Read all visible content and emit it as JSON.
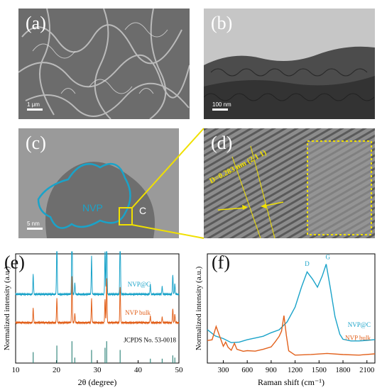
{
  "panels": {
    "a": {
      "label": "(a)",
      "scale": "1 μm"
    },
    "b": {
      "label": "(b)",
      "scale": "100 nm"
    },
    "c": {
      "label": "(c)",
      "scale": "5 nm",
      "region_nvp": "NVP",
      "region_c": "C"
    },
    "d": {
      "label": "(d)",
      "annotation": "D=0.283 nm (2 1 1)"
    }
  },
  "colors": {
    "nvpc": "#1aa3c9",
    "bulk": "#e2611c",
    "jcpds": "#3a8a80",
    "yellow": "#f0e000",
    "cyan_outline": "#1aa3c9"
  },
  "chart_data": [
    {
      "type": "line",
      "panel_label": "(e)",
      "xlabel": "2θ (degree)",
      "ylabel": "Normalized intensity (a.u.)",
      "xlim": [
        10,
        50
      ],
      "xticks": [
        10,
        20,
        30,
        40,
        50
      ],
      "series": [
        {
          "name": "NVP@C",
          "color": "#1aa3c9",
          "offset": 0.63,
          "peaks": [
            [
              14.3,
              0.18
            ],
            [
              20.1,
              0.5
            ],
            [
              23.8,
              0.78
            ],
            [
              24.5,
              0.1
            ],
            [
              28.6,
              0.35
            ],
            [
              31.9,
              0.4
            ],
            [
              32.3,
              0.72
            ],
            [
              35.6,
              0.6
            ],
            [
              43.0,
              0.09
            ],
            [
              45.9,
              0.07
            ],
            [
              48.5,
              0.18
            ],
            [
              49.0,
              0.1
            ]
          ]
        },
        {
          "name": "NVP bulk",
          "color": "#e2611c",
          "offset": 0.37,
          "peaks": [
            [
              14.3,
              0.13
            ],
            [
              20.1,
              0.22
            ],
            [
              23.8,
              0.42
            ],
            [
              24.5,
              0.08
            ],
            [
              28.6,
              0.22
            ],
            [
              31.9,
              0.22
            ],
            [
              32.3,
              0.4
            ],
            [
              35.6,
              0.33
            ],
            [
              43.0,
              0.06
            ],
            [
              45.9,
              0.05
            ],
            [
              48.5,
              0.13
            ],
            [
              49.0,
              0.08
            ]
          ]
        }
      ],
      "reference": {
        "name": "JCPDS No. 53-0018",
        "color": "#3a8a80",
        "sticks": [
          [
            14.3,
            0.1
          ],
          [
            20.1,
            0.16
          ],
          [
            23.8,
            0.2
          ],
          [
            24.5,
            0.05
          ],
          [
            28.6,
            0.12
          ],
          [
            31.9,
            0.14
          ],
          [
            32.3,
            0.2
          ],
          [
            35.6,
            0.12
          ],
          [
            43.0,
            0.04
          ],
          [
            45.9,
            0.04
          ],
          [
            48.5,
            0.07
          ],
          [
            49.0,
            0.05
          ]
        ]
      }
    },
    {
      "type": "line",
      "panel_label": "(f)",
      "xlabel": "Raman shift (cm⁻¹)",
      "ylabel": "Normalized intensity (a.u.)",
      "xlim": [
        100,
        2200
      ],
      "xticks": [
        300,
        600,
        900,
        1200,
        1500,
        1800,
        2100
      ],
      "annotations": [
        "D",
        "G"
      ],
      "series": [
        {
          "name": "NVP@C",
          "color": "#1aa3c9",
          "points": [
            [
              100,
              0.3
            ],
            [
              200,
              0.24
            ],
            [
              300,
              0.22
            ],
            [
              400,
              0.19
            ],
            [
              500,
              0.2
            ],
            [
              600,
              0.22
            ],
            [
              700,
              0.23
            ],
            [
              800,
              0.24
            ],
            [
              900,
              0.27
            ],
            [
              1000,
              0.3
            ],
            [
              1100,
              0.38
            ],
            [
              1200,
              0.52
            ],
            [
              1280,
              0.7
            ],
            [
              1350,
              0.83
            ],
            [
              1420,
              0.76
            ],
            [
              1480,
              0.7
            ],
            [
              1540,
              0.8
            ],
            [
              1590,
              0.9
            ],
            [
              1640,
              0.7
            ],
            [
              1700,
              0.42
            ],
            [
              1760,
              0.26
            ],
            [
              1800,
              0.22
            ],
            [
              1900,
              0.21
            ],
            [
              2000,
              0.21
            ],
            [
              2100,
              0.21
            ],
            [
              2200,
              0.21
            ]
          ]
        },
        {
          "name": "NVP bulk",
          "color": "#e2611c",
          "points": [
            [
              100,
              0.2
            ],
            [
              160,
              0.22
            ],
            [
              210,
              0.33
            ],
            [
              250,
              0.26
            ],
            [
              300,
              0.15
            ],
            [
              330,
              0.2
            ],
            [
              360,
              0.14
            ],
            [
              400,
              0.12
            ],
            [
              440,
              0.18
            ],
            [
              470,
              0.12
            ],
            [
              550,
              0.1
            ],
            [
              600,
              0.12
            ],
            [
              700,
              0.11
            ],
            [
              800,
              0.12
            ],
            [
              900,
              0.14
            ],
            [
              950,
              0.2
            ],
            [
              1000,
              0.24
            ],
            [
              1030,
              0.3
            ],
            [
              1060,
              0.43
            ],
            [
              1090,
              0.25
            ],
            [
              1120,
              0.12
            ],
            [
              1200,
              0.08
            ],
            [
              1400,
              0.08
            ],
            [
              1600,
              0.08
            ],
            [
              1800,
              0.08
            ],
            [
              2000,
              0.08
            ],
            [
              2200,
              0.08
            ]
          ]
        }
      ]
    }
  ]
}
